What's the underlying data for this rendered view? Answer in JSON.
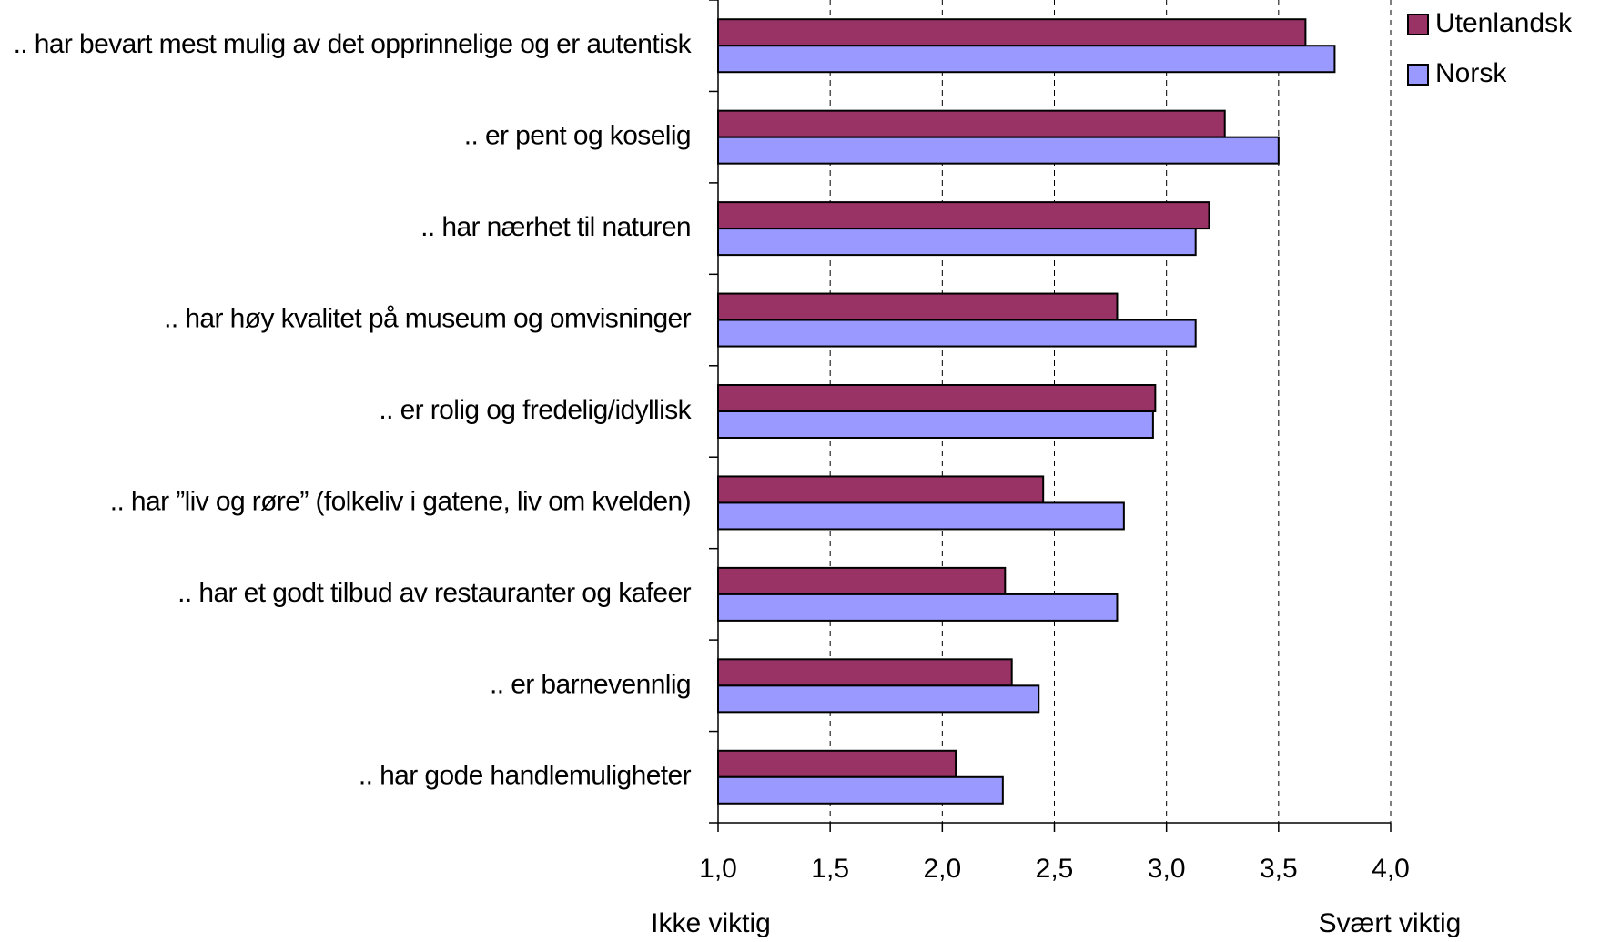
{
  "chart_data": {
    "type": "hbar",
    "categories": [
      ".. har bevart mest mulig av det opprinnelige og er autentisk",
      ".. er pent og koselig",
      ".. har nærhet til naturen",
      ".. har høy kvalitet på museum og omvisninger",
      ".. er rolig og fredelig/idyllisk",
      ".. har ”liv og røre” (folkeliv i gatene, liv om kvelden)",
      ".. har et godt tilbud av restauranter og kafeer",
      ".. er barnevennlig",
      ".. har gode handlemuligheter"
    ],
    "series": [
      {
        "name": "Utenlandsk",
        "color": "#993366",
        "values": [
          3.62,
          3.26,
          3.19,
          2.78,
          2.95,
          2.45,
          2.28,
          2.31,
          2.06
        ]
      },
      {
        "name": "Norsk",
        "color": "#9999ff",
        "values": [
          3.75,
          3.5,
          3.13,
          3.13,
          2.94,
          2.81,
          2.78,
          2.43,
          2.27
        ]
      }
    ],
    "xlim": [
      1,
      4
    ],
    "xticks": [
      {
        "value": 1,
        "label": "1,0"
      },
      {
        "value": 1.5,
        "label": "1,5"
      },
      {
        "value": 2,
        "label": "2,0"
      },
      {
        "value": 2.5,
        "label": "2,5"
      },
      {
        "value": 3,
        "label": "3,0"
      },
      {
        "value": 3.5,
        "label": "3,5"
      },
      {
        "value": 4,
        "label": "4,0"
      }
    ],
    "grid": true,
    "legend": "top-right",
    "annotations": [
      "Ikke viktig",
      "Svært viktig"
    ]
  }
}
